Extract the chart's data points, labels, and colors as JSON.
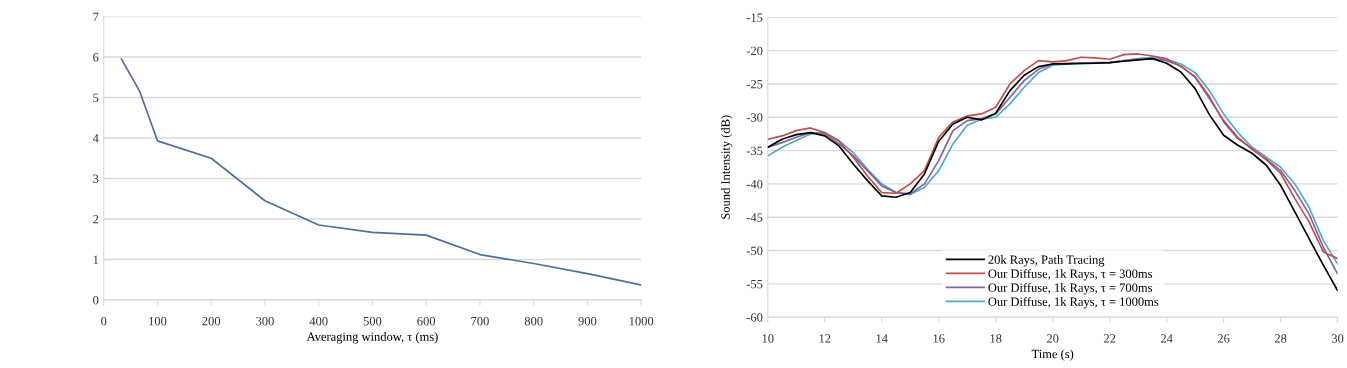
{
  "chart_data": [
    {
      "type": "line",
      "xlabel": "Averaging window, τ (ms)",
      "x": [
        33,
        67,
        100,
        200,
        300,
        400,
        500,
        600,
        700,
        800,
        900,
        1000
      ],
      "series": [
        {
          "color": "#4a6f9f",
          "values": [
            5.95,
            5.15,
            3.93,
            3.5,
            2.45,
            1.85,
            1.67,
            1.6,
            1.12,
            0.9,
            0.65,
            0.37
          ]
        }
      ],
      "xlim": [
        0,
        1000
      ],
      "xticks": [
        0,
        100,
        200,
        300,
        400,
        500,
        600,
        700,
        800,
        900,
        1000
      ],
      "ylim": [
        0,
        7
      ],
      "yticks": [
        0,
        1,
        2,
        3,
        4,
        5,
        6,
        7
      ],
      "grid": "y",
      "marker": "none",
      "line_style": "solid"
    },
    {
      "type": "line",
      "xlabel": "Time (s)",
      "ylabel": "Sound Intensity (dB)",
      "x": [
        10,
        10.5,
        11,
        11.5,
        12,
        12.5,
        13,
        13.5,
        14,
        14.5,
        15,
        15.5,
        16,
        16.5,
        17,
        17.5,
        18,
        18.5,
        19,
        19.5,
        20,
        20.5,
        21,
        21.5,
        22,
        22.5,
        23,
        23.5,
        24,
        24.5,
        25,
        25.5,
        26,
        26.5,
        27,
        27.5,
        28,
        28.5,
        29,
        29.5,
        30
      ],
      "series": [
        {
          "name": "20k Rays, Path Tracing",
          "color": "#000000",
          "values": [
            -34.5,
            -33.3,
            -32.6,
            -32.3,
            -32.8,
            -34.3,
            -37,
            -39.5,
            -41.8,
            -42,
            -41.3,
            -38.5,
            -33.6,
            -31,
            -30,
            -30.4,
            -29.4,
            -26,
            -23.7,
            -22.4,
            -22,
            -22,
            -21.9,
            -21.9,
            -21.8,
            -21.6,
            -21.4,
            -21.2,
            -21.9,
            -23.2,
            -25.7,
            -29.6,
            -32.7,
            -34.2,
            -35.4,
            -37.2,
            -40.2,
            -44.2,
            -48.2,
            -52.2,
            -56
          ]
        },
        {
          "name": "Our Diffuse, 1k Rays, τ = 300ms",
          "color": "#c0504d",
          "values": [
            -33.3,
            -32.8,
            -32,
            -31.6,
            -32.3,
            -33.6,
            -36,
            -38.8,
            -41.3,
            -41.4,
            -40,
            -38,
            -33,
            -30.7,
            -29.8,
            -29.5,
            -28.5,
            -25,
            -23,
            -21.5,
            -21.7,
            -21.5,
            -21,
            -21.1,
            -21.3,
            -20.6,
            -20.5,
            -20.8,
            -21.2,
            -22.4,
            -23.9,
            -26.9,
            -30.7,
            -33.2,
            -34.7,
            -36.4,
            -38.4,
            -42.2,
            -45.7,
            -50.2,
            -51.2
          ]
        },
        {
          "name": "Our Diffuse, 1k Rays, τ = 700ms",
          "color": "#7f64a2",
          "values": [
            -34.5,
            -33.8,
            -33,
            -32.3,
            -32.5,
            -34,
            -35.8,
            -38,
            -40.3,
            -41.3,
            -41.5,
            -40,
            -36.5,
            -32,
            -30.5,
            -30.2,
            -29.5,
            -27,
            -24.5,
            -22.8,
            -22,
            -21.9,
            -21.9,
            -21.8,
            -21.8,
            -21.5,
            -21.3,
            -21.2,
            -21.5,
            -22.3,
            -24,
            -27.2,
            -30.5,
            -33,
            -34.8,
            -36.3,
            -38,
            -41,
            -44.5,
            -49.5,
            -53.5
          ]
        },
        {
          "name": "Our Diffuse, 1k Rays, τ = 1000ms",
          "color": "#4bacc6",
          "values": [
            -35.8,
            -34.5,
            -33.5,
            -32.5,
            -32.3,
            -33.5,
            -35.3,
            -37.8,
            -40,
            -41.3,
            -41.6,
            -40.5,
            -38,
            -34,
            -31.2,
            -30.3,
            -30,
            -28,
            -25.5,
            -23.3,
            -22.2,
            -22,
            -22,
            -21.9,
            -21.8,
            -21.5,
            -21.2,
            -21,
            -21.3,
            -22,
            -23.3,
            -26,
            -29.5,
            -32.3,
            -34.5,
            -36,
            -37.5,
            -40,
            -43.5,
            -48.5,
            -52
          ]
        }
      ],
      "xlim": [
        10,
        30
      ],
      "xticks": [
        10,
        12,
        14,
        16,
        18,
        20,
        22,
        24,
        26,
        28,
        30
      ],
      "ylim": [
        -60,
        -15
      ],
      "yticks": [
        -60,
        -55,
        -50,
        -45,
        -40,
        -35,
        -30,
        -25,
        -20,
        -15
      ],
      "grid": "y",
      "legend": "lower center",
      "marker": "none",
      "line_style": "solid"
    }
  ]
}
